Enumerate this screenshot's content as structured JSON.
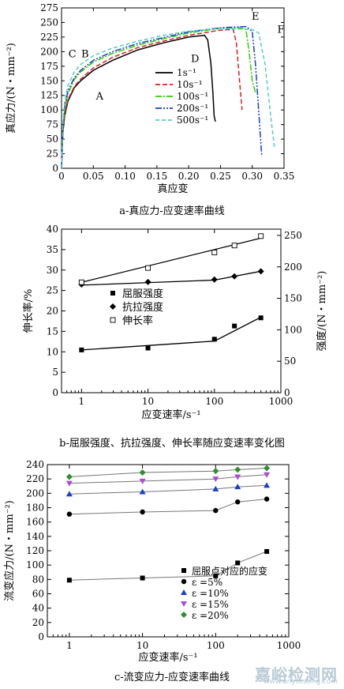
{
  "chart_data": [
    {
      "id": "a",
      "type": "line",
      "caption": "a-真应力-应变速率曲线",
      "xlabel": "真应变",
      "ylabel": "真应力/(N・mm⁻²)",
      "xlim": [
        0,
        0.35
      ],
      "ylim": [
        0,
        275
      ],
      "xticks": [
        "0",
        "0.05",
        "0.10",
        "0.15",
        "0.20",
        "0.25",
        "0.30",
        "0.35"
      ],
      "yticks": [
        "0",
        "25",
        "50",
        "75",
        "100",
        "125",
        "150",
        "175",
        "200",
        "225",
        "250",
        "275"
      ],
      "point_labels": [
        {
          "text": "A",
          "x": 0.06,
          "y": 118
        },
        {
          "text": "B",
          "x": 0.037,
          "y": 190
        },
        {
          "text": "C",
          "x": 0.017,
          "y": 190
        },
        {
          "text": "D",
          "x": 0.21,
          "y": 182
        },
        {
          "text": "E",
          "x": 0.305,
          "y": 255
        },
        {
          "text": "F",
          "x": 0.345,
          "y": 232
        }
      ],
      "series": [
        {
          "name": "1s⁻¹",
          "color": "#000000",
          "dash": "",
          "x": [
            0,
            0.002,
            0.005,
            0.01,
            0.02,
            0.03,
            0.05,
            0.08,
            0.12,
            0.16,
            0.2,
            0.225,
            0.23,
            0.235,
            0.238,
            0.24,
            0.242
          ],
          "y": [
            0,
            60,
            90,
            115,
            138,
            150,
            168,
            185,
            203,
            215,
            225,
            228,
            220,
            180,
            130,
            90,
            80
          ]
        },
        {
          "name": "10s⁻¹",
          "color": "#d42020",
          "dash": "6,3",
          "x": [
            0,
            0.002,
            0.005,
            0.01,
            0.02,
            0.03,
            0.05,
            0.08,
            0.12,
            0.16,
            0.2,
            0.25,
            0.27,
            0.275,
            0.28,
            0.284
          ],
          "y": [
            0,
            60,
            92,
            118,
            140,
            153,
            172,
            190,
            207,
            218,
            228,
            237,
            238,
            215,
            150,
            100
          ]
        },
        {
          "name": "100s⁻¹",
          "color": "#33cc00",
          "dash": "8,2,2,2",
          "x": [
            0,
            0.002,
            0.005,
            0.01,
            0.02,
            0.03,
            0.05,
            0.08,
            0.12,
            0.16,
            0.2,
            0.25,
            0.28,
            0.29,
            0.295,
            0.3,
            0.305
          ],
          "y": [
            0,
            65,
            100,
            128,
            152,
            165,
            182,
            197,
            211,
            222,
            232,
            240,
            241,
            238,
            200,
            150,
            130
          ]
        },
        {
          "name": "200s⁻¹",
          "color": "#1a3ec7",
          "dash": "8,2,2,2,2,2",
          "x": [
            0,
            0.002,
            0.005,
            0.01,
            0.02,
            0.03,
            0.05,
            0.08,
            0.12,
            0.16,
            0.2,
            0.25,
            0.29,
            0.3,
            0.305,
            0.31,
            0.315
          ],
          "y": [
            0,
            70,
            105,
            133,
            155,
            168,
            185,
            200,
            214,
            224,
            234,
            241,
            243,
            235,
            180,
            100,
            20
          ]
        },
        {
          "name": "500s⁻¹",
          "color": "#55ccc5",
          "dash": "5,3",
          "x": [
            0,
            0.002,
            0.005,
            0.01,
            0.02,
            0.03,
            0.05,
            0.08,
            0.12,
            0.16,
            0.2,
            0.25,
            0.3,
            0.31,
            0.32,
            0.33,
            0.335
          ],
          "y": [
            0,
            75,
            115,
            142,
            165,
            178,
            193,
            206,
            218,
            228,
            235,
            240,
            238,
            232,
            180,
            80,
            35
          ]
        }
      ]
    },
    {
      "id": "b",
      "type": "scatter",
      "caption": "b-屈服强度、抗拉强度、伸长率随应变速率变化图",
      "xlabel": "应变速率/s⁻¹",
      "ylabel": "伸长率/%",
      "y2label": "强度/(N・mm⁻²)",
      "xscale": "log",
      "xlim": [
        0.5,
        1000
      ],
      "ylim": [
        0,
        40
      ],
      "y2lim": [
        0,
        260
      ],
      "xticks": [
        "1",
        "10",
        "100",
        "1000"
      ],
      "yticks": [
        "0",
        "5",
        "10",
        "15",
        "20",
        "25",
        "30",
        "35",
        "40"
      ],
      "y2ticks": [
        "0",
        "50",
        "100",
        "150",
        "200",
        "250"
      ],
      "legend": "center-left",
      "series": [
        {
          "name": "屈服强度",
          "marker": "square",
          "axis": "right",
          "x": [
            1,
            10,
            100,
            200,
            500
          ],
          "y": [
            68,
            71,
            85,
            106,
            119
          ],
          "fit_x": [
            1,
            100,
            500
          ],
          "fit_y": [
            68,
            82,
            120
          ]
        },
        {
          "name": "抗拉强度",
          "marker": "diamond",
          "axis": "right",
          "x": [
            1,
            10,
            100,
            200,
            500
          ],
          "y": [
            172,
            176,
            180,
            185,
            193
          ],
          "fit_x": [
            1,
            100,
            500
          ],
          "fit_y": [
            171,
            179,
            193
          ]
        },
        {
          "name": "伸长率",
          "marker": "open-square",
          "axis": "left",
          "x": [
            1,
            10,
            100,
            200,
            500
          ],
          "y": [
            27,
            30.5,
            34.3,
            36,
            38.3
          ],
          "fit_x": [
            1,
            500
          ],
          "fit_y": [
            27,
            37.8
          ]
        }
      ]
    },
    {
      "id": "c",
      "type": "scatter",
      "caption": "c-流变应力-应变速率曲线",
      "xlabel": "应变速率/s⁻¹",
      "ylabel": "流变应力/(N・mm⁻²)",
      "xscale": "log",
      "xlim": [
        0.5,
        1000
      ],
      "ylim": [
        0,
        240
      ],
      "xticks": [
        "1",
        "10",
        "100",
        "1000"
      ],
      "yticks": [
        "0",
        "20",
        "40",
        "60",
        "80",
        "100",
        "120",
        "140",
        "160",
        "180",
        "200",
        "220",
        "240"
      ],
      "legend": "bottom-right",
      "series": [
        {
          "name": "屈服点对应的应变",
          "marker": "square",
          "color": "#000000",
          "x": [
            1,
            10,
            100,
            200,
            500
          ],
          "y": [
            79,
            82,
            85,
            103,
            119
          ]
        },
        {
          "name": "ε =5%",
          "marker": "circle",
          "color": "#000000",
          "x": [
            1,
            10,
            100,
            200,
            500
          ],
          "y": [
            171,
            174,
            176,
            188,
            192
          ]
        },
        {
          "name": "ε =10%",
          "marker": "triangle-up",
          "color": "#1a3ec7",
          "x": [
            1,
            10,
            100,
            200,
            500
          ],
          "y": [
            199,
            202,
            206,
            209,
            211
          ]
        },
        {
          "name": "ε =15%",
          "marker": "triangle-down",
          "color": "#a64dd9",
          "x": [
            1,
            10,
            100,
            200,
            500
          ],
          "y": [
            214,
            217,
            220,
            223,
            226
          ]
        },
        {
          "name": "ε =20%",
          "marker": "diamond",
          "color": "#2f8f2f",
          "x": [
            1,
            10,
            100,
            200,
            500
          ],
          "y": [
            223,
            229,
            231,
            233,
            235
          ]
        }
      ]
    }
  ],
  "watermark": {
    "text": "嘉峪检测网",
    "url": "www.anytesting.com"
  }
}
